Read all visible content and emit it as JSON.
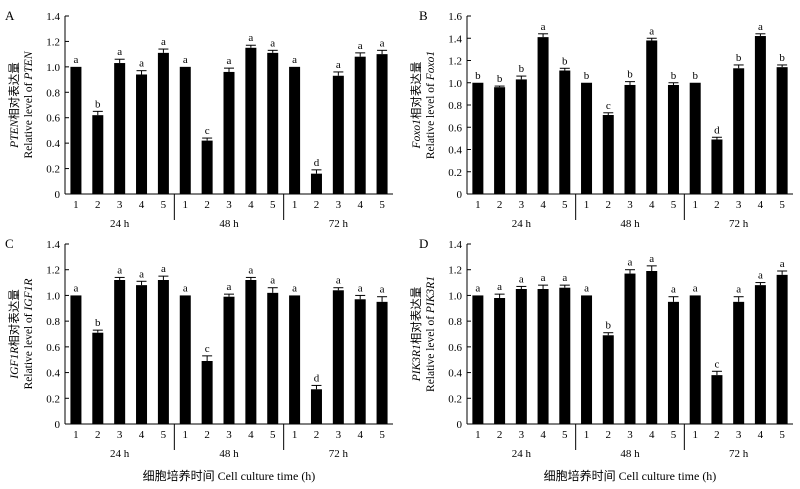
{
  "figure": {
    "xlabel": "细胞培养时间 Cell culture time (h)",
    "groups": [
      "24 h",
      "48 h",
      "72 h"
    ],
    "samples": [
      "1",
      "2",
      "3",
      "4",
      "5"
    ]
  },
  "chart_data": [
    {
      "type": "bar",
      "panel": "A",
      "ylabel_italic": "PTEN",
      "ylabel_cn": "相对表达量",
      "ylabel_en": "Relative level of",
      "ylim": [
        0,
        1.4
      ],
      "yticks": [
        "0",
        "0.2",
        "0.4",
        "0.6",
        "0.8",
        "1.0",
        "1.2",
        "1.4"
      ],
      "categories": [
        "1",
        "2",
        "3",
        "4",
        "5",
        "1",
        "2",
        "3",
        "4",
        "5",
        "1",
        "2",
        "3",
        "4",
        "5"
      ],
      "values": [
        1.0,
        0.62,
        1.03,
        0.94,
        1.11,
        1.0,
        0.42,
        0.96,
        1.15,
        1.11,
        1.0,
        0.16,
        0.93,
        1.08,
        1.1
      ],
      "errors": [
        0.0,
        0.03,
        0.03,
        0.03,
        0.03,
        0.0,
        0.02,
        0.03,
        0.02,
        0.02,
        0.0,
        0.03,
        0.03,
        0.03,
        0.03
      ],
      "labels": [
        "a",
        "b",
        "a",
        "a",
        "a",
        "a",
        "c",
        "a",
        "a",
        "a",
        "a",
        "d",
        "a",
        "a",
        "a"
      ]
    },
    {
      "type": "bar",
      "panel": "B",
      "ylabel_italic": "Foxo1",
      "ylabel_cn": "相对表达量",
      "ylabel_en": "Relative level of",
      "ylim": [
        0,
        1.6
      ],
      "yticks": [
        "0",
        "0.2",
        "0.4",
        "0.6",
        "0.8",
        "1.0",
        "1.2",
        "1.4",
        "1.6"
      ],
      "categories": [
        "1",
        "2",
        "3",
        "4",
        "5",
        "1",
        "2",
        "3",
        "4",
        "5",
        "1",
        "2",
        "3",
        "4",
        "5"
      ],
      "values": [
        1.0,
        0.96,
        1.03,
        1.41,
        1.11,
        1.0,
        0.71,
        0.98,
        1.38,
        0.98,
        1.0,
        0.49,
        1.13,
        1.42,
        1.14
      ],
      "errors": [
        0.0,
        0.01,
        0.03,
        0.03,
        0.02,
        0.0,
        0.02,
        0.03,
        0.02,
        0.02,
        0.0,
        0.02,
        0.03,
        0.02,
        0.02
      ],
      "labels": [
        "b",
        "b",
        "b",
        "a",
        "b",
        "b",
        "c",
        "b",
        "a",
        "b",
        "b",
        "d",
        "b",
        "a",
        "b"
      ]
    },
    {
      "type": "bar",
      "panel": "C",
      "ylabel_italic": "IGF1R",
      "ylabel_cn": "相对表达量",
      "ylabel_en": "Relative level of",
      "ylim": [
        0,
        1.4
      ],
      "yticks": [
        "0",
        "0.2",
        "0.4",
        "0.6",
        "0.8",
        "1.0",
        "1.2",
        "1.4"
      ],
      "categories": [
        "1",
        "2",
        "3",
        "4",
        "5",
        "1",
        "2",
        "3",
        "4",
        "5",
        "1",
        "2",
        "3",
        "4",
        "5"
      ],
      "values": [
        1.0,
        0.71,
        1.12,
        1.08,
        1.12,
        1.0,
        0.49,
        0.99,
        1.12,
        1.02,
        1.0,
        0.27,
        1.04,
        0.97,
        0.95
      ],
      "errors": [
        0.0,
        0.02,
        0.02,
        0.03,
        0.03,
        0.0,
        0.04,
        0.02,
        0.02,
        0.04,
        0.0,
        0.03,
        0.02,
        0.03,
        0.04
      ],
      "labels": [
        "a",
        "b",
        "a",
        "a",
        "a",
        "a",
        "c",
        "a",
        "a",
        "a",
        "a",
        "d",
        "a",
        "a",
        "a"
      ]
    },
    {
      "type": "bar",
      "panel": "D",
      "ylabel_italic": "PIK3R1",
      "ylabel_cn": "相对表达量",
      "ylabel_en": "Relative level of",
      "ylim": [
        0,
        1.4
      ],
      "yticks": [
        "0",
        "0.2",
        "0.4",
        "0.6",
        "0.8",
        "1.0",
        "1.2",
        "1.4"
      ],
      "categories": [
        "1",
        "2",
        "3",
        "4",
        "5",
        "1",
        "2",
        "3",
        "4",
        "5",
        "1",
        "2",
        "3",
        "4",
        "5"
      ],
      "values": [
        1.0,
        0.98,
        1.05,
        1.05,
        1.06,
        1.0,
        0.69,
        1.17,
        1.19,
        0.95,
        1.0,
        0.38,
        0.95,
        1.08,
        1.16
      ],
      "errors": [
        0.0,
        0.03,
        0.02,
        0.03,
        0.02,
        0.0,
        0.02,
        0.03,
        0.04,
        0.04,
        0.0,
        0.03,
        0.04,
        0.02,
        0.03
      ],
      "labels": [
        "a",
        "a",
        "a",
        "a",
        "a",
        "a",
        "b",
        "a",
        "a",
        "a",
        "a",
        "c",
        "a",
        "a",
        "a"
      ]
    }
  ]
}
